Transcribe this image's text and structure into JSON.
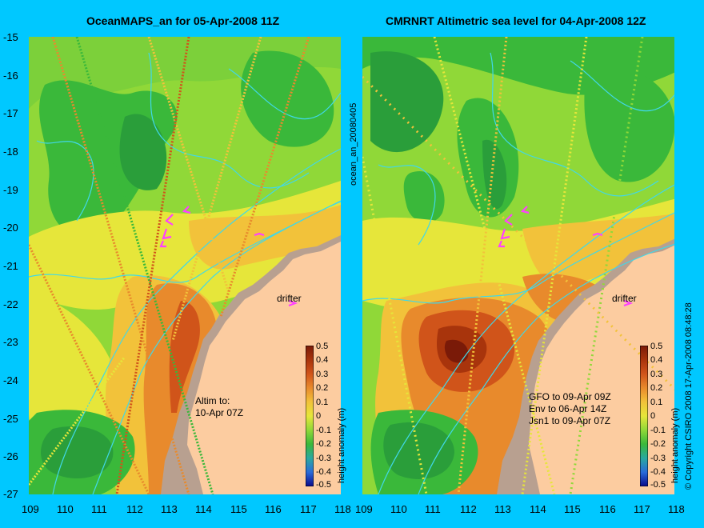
{
  "left_panel": {
    "title": "OceanMAPS_an for 05-Apr-2008 11Z",
    "altim_line1": "Altim to:",
    "altim_line2": "10-Apr 07Z",
    "drifter_label": "drifter",
    "colorbar_label": "height anomaly (m)"
  },
  "right_panel": {
    "title": "CMRNRT Altimetric sea level  for 04-Apr-2008 12Z",
    "sat_lines": [
      "GFO to 09-Apr 09Z",
      "Env to 06-Apr 14Z",
      "Jsn1 to 09-Apr 07Z"
    ],
    "drifter_label": "drifter",
    "colorbar_label": "height anomaly (m)"
  },
  "side_label": "ocean_an_20080405",
  "copyright": "© Copyright CSIRO 2008    17-Apr-2008 08:48:28",
  "axes": {
    "y_ticks": [
      "-15",
      "-16",
      "-17",
      "-18",
      "-19",
      "-20",
      "-21",
      "-22",
      "-23",
      "-24",
      "-25",
      "-26",
      "-27"
    ],
    "x_ticks_left": [
      "109",
      "110",
      "111",
      "112",
      "113",
      "114",
      "115",
      "116",
      "117",
      "118"
    ],
    "x_ticks_right": [
      "109",
      "110",
      "111",
      "112",
      "113",
      "114",
      "115",
      "116",
      "117",
      "118"
    ]
  },
  "colorbar": {
    "ticks": [
      "0.5",
      "0.4",
      "0.3",
      "0.2",
      "0.1",
      "0",
      "-0.1",
      "-0.2",
      "-0.3",
      "-0.4",
      "-0.5"
    ],
    "colors": [
      "#7a1a08",
      "#a8340c",
      "#d0541a",
      "#e88a2c",
      "#f2c23a",
      "#e6e63a",
      "#90d838",
      "#3ab83a",
      "#2aa8a0",
      "#2a6ad8",
      "#0a0a8a"
    ]
  },
  "map_colors": {
    "land": "#fccca0",
    "land_shelf": "#b8a090",
    "contour": "#40d8e8",
    "drifter_arrow": "#ff40ff"
  }
}
